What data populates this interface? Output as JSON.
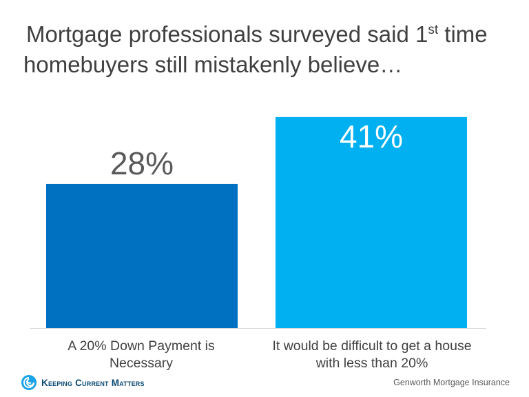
{
  "title": {
    "line1_before": "Mortgage professionals surveyed said 1",
    "line1_sup": "st",
    "line1_after": " time",
    "line2": "homebuyers still mistakenly believe…"
  },
  "chart_data": {
    "type": "bar",
    "categories": [
      "A 20% Down Payment is Necessary",
      "It would be difficult to get a house with less than 20%"
    ],
    "values": [
      28,
      41
    ],
    "data_labels": [
      "28%",
      "41%"
    ],
    "colors": [
      "#0070c0",
      "#00b0f0"
    ],
    "ylim": [
      0,
      45
    ],
    "grid": false,
    "legend": "none"
  },
  "labels": {
    "cat1_line1": "A 20% Down Payment is",
    "cat1_line2": "Necessary",
    "cat2_line1": "It would be difficult to get a house",
    "cat2_line2": "with less than 20%"
  },
  "footer": {
    "brand": "Keeping Current Matters",
    "source": "Genworth Mortgage Insurance",
    "brand_color": "#0b4a73",
    "logo_icon": "swirl-logo-icon"
  }
}
